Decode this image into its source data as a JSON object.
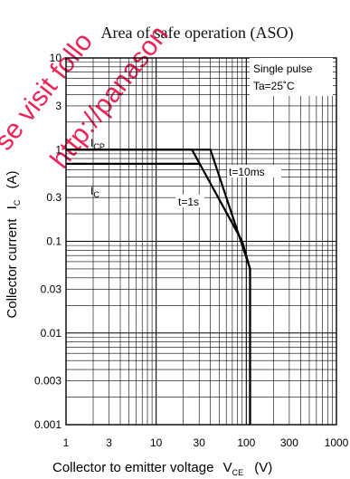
{
  "title": "Area of safe operation (ASO)",
  "watermark": [
    "se visit follo",
    "http://panason"
  ],
  "chart_data": {
    "type": "line",
    "title": "Area of safe operation (ASO)",
    "xlabel": {
      "main": "Collector to emitter voltage",
      "symbol": "V",
      "subscript": "CE",
      "unit": "(V)"
    },
    "ylabel": {
      "main": "Collector current",
      "symbol": "I",
      "subscript": "C",
      "unit": "(A)"
    },
    "xscale": "log",
    "yscale": "log",
    "xlim": [
      1,
      1000
    ],
    "ylim": [
      0.001,
      10
    ],
    "xticks": [
      {
        "v": 1,
        "label": "1"
      },
      {
        "v": 3,
        "label": "3"
      },
      {
        "v": 10,
        "label": "10"
      },
      {
        "v": 30,
        "label": "30"
      },
      {
        "v": 100,
        "label": "100"
      },
      {
        "v": 300,
        "label": "300"
      },
      {
        "v": 1000,
        "label": "1000"
      }
    ],
    "yticks": [
      {
        "v": 0.001,
        "label": "0.001"
      },
      {
        "v": 0.003,
        "label": "0.003"
      },
      {
        "v": 0.01,
        "label": "0.01"
      },
      {
        "v": 0.03,
        "label": "0.03"
      },
      {
        "v": 0.1,
        "label": "0.1"
      },
      {
        "v": 0.3,
        "label": "0.3"
      },
      {
        "v": 1,
        "label": "1"
      },
      {
        "v": 3,
        "label": "3"
      },
      {
        "v": 10,
        "label": "10"
      }
    ],
    "grid": true,
    "conditions": [
      "Single pulse",
      "Ta=25˚C"
    ],
    "series": [
      {
        "name": "t=10ms",
        "x": [
          1,
          40,
          110,
          110
        ],
        "y": [
          1.0,
          1.0,
          0.05,
          0.001
        ]
      },
      {
        "name": "t=1s",
        "x": [
          1,
          25,
          90,
          110,
          110
        ],
        "y": [
          1.0,
          1.0,
          0.1,
          0.05,
          0.001
        ]
      },
      {
        "name": "",
        "x": [
          1,
          30
        ],
        "y": [
          0.7,
          0.7
        ]
      }
    ],
    "annotations": [
      {
        "symbol": "I",
        "subscript": "CP",
        "x": 1.5,
        "y": 1.45
      },
      {
        "symbol": "I",
        "subscript": "C",
        "x": 1.5,
        "y": 0.47
      },
      {
        "text": "t=10ms",
        "x": 45,
        "y": 0.72
      },
      {
        "text": "t=1s",
        "x": 24,
        "y": 0.34
      }
    ]
  }
}
